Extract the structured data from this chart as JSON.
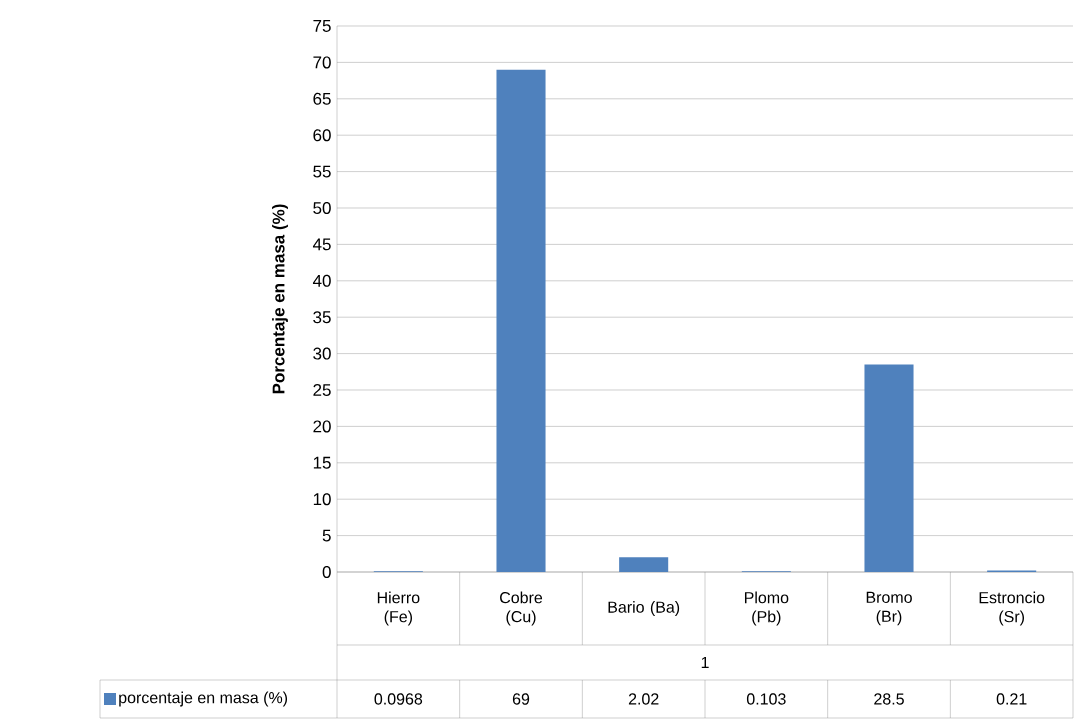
{
  "chart_data": {
    "type": "bar",
    "ylabel": "Porcentaje en masa (%)",
    "xlabel": "1",
    "categories": [
      "Hierro (Fe)",
      "Cobre (Cu)",
      "Bario (Ba)",
      "Plomo (Pb)",
      "Bromo (Br)",
      "Estroncio (Sr)"
    ],
    "series": [
      {
        "name": "porcentaje en masa (%)",
        "color": "#4f81bd",
        "values": [
          0.0968,
          69,
          2.02,
          0.103,
          28.5,
          0.21
        ]
      }
    ],
    "ylim": [
      0,
      75
    ],
    "yticks": [
      0,
      5,
      10,
      15,
      20,
      25,
      30,
      35,
      40,
      45,
      50,
      55,
      60,
      65,
      70,
      75
    ],
    "grid": "y",
    "data_labels": true,
    "legend": "bottom left"
  }
}
